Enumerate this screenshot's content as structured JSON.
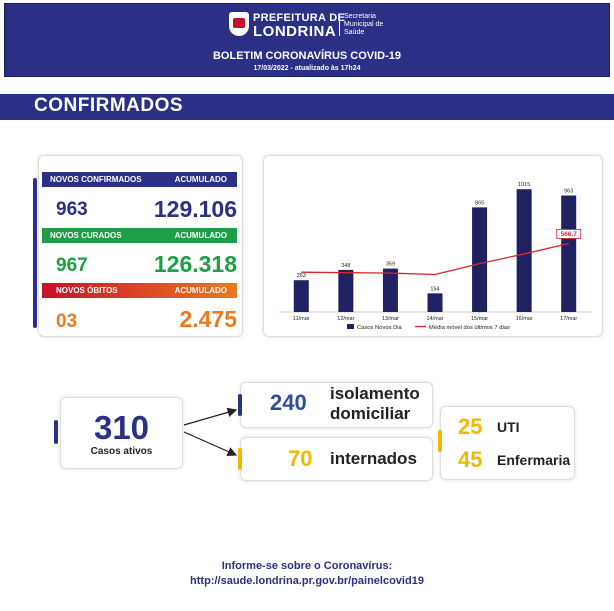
{
  "header": {
    "logo_line1": "PREFEITURA DE",
    "logo_line2": "LONDRINA",
    "logo_secretaria": "Secretaria Municipal de Saúde",
    "title": "BOLETIM CORONAVÍRUS COVID-19",
    "date": "17/03/2022 - atualizado às 17h24"
  },
  "section_title": "CONFIRMADOS",
  "stats": {
    "confirmados": {
      "label": "NOVOS CONFIRMADOS",
      "acc_label": "ACUMULADO",
      "new": "963",
      "total": "129.106",
      "color": "#2b2f86"
    },
    "curados": {
      "label": "NOVOS CURADOS",
      "acc_label": "ACUMULADO",
      "new": "967",
      "total": "126.318",
      "color": "#1e9e46"
    },
    "obitos": {
      "label": "NOVOS ÓBITOS",
      "acc_label": "ACUMULADO",
      "new": "03",
      "total": "2.475",
      "color": "#ea7a1c"
    }
  },
  "chart_data": {
    "type": "bar",
    "categories": [
      "11/mar",
      "12/mar",
      "13/mar",
      "14/mar",
      "15/mar",
      "16/mar",
      "17/mar"
    ],
    "series": [
      {
        "name": "Casos Novos Dia",
        "type": "bar",
        "values": [
          263,
          348,
          359,
          154,
          865,
          1015,
          963
        ],
        "color": "#1f2163"
      },
      {
        "name": "Média móvel dos últimos 7 dias",
        "type": "line",
        "values": [
          329,
          325,
          322,
          310,
          400,
          480,
          566.7
        ],
        "color": "#d9262d"
      }
    ],
    "ylim": [
      0,
      1050
    ],
    "highlight_label": "566,7",
    "legend_position": "bottom"
  },
  "active": {
    "value": "310",
    "label": "Casos ativos"
  },
  "isolamento": {
    "value": "240",
    "label_line1": "isolamento",
    "label_line2": "domiciliar"
  },
  "internados": {
    "value": "70",
    "label": "internados"
  },
  "uti": {
    "value": "25",
    "label": "UTI"
  },
  "enfermaria": {
    "value": "45",
    "label": "Enfermaria"
  },
  "footer": {
    "line1": "Informe-se sobre o Coronavírus:",
    "line2": "http://saude.londrina.pr.gov.br/painelcovid19"
  }
}
